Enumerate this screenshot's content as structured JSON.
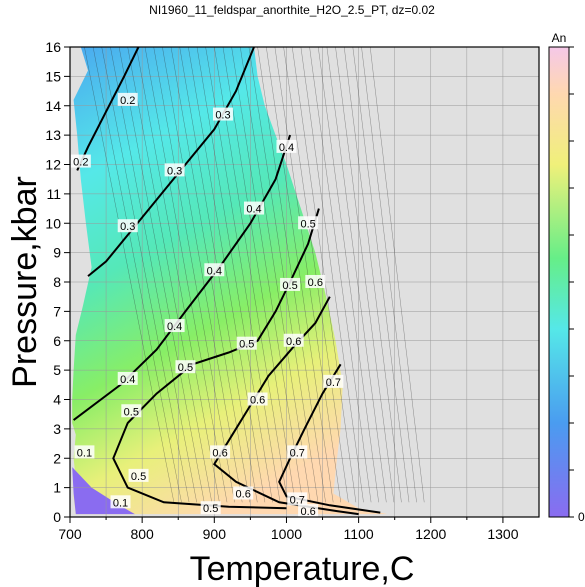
{
  "chart_data": {
    "type": "contour",
    "title": "NI1960_11_feldspar_anorthite_H2O_2.5_PT, dz=0.02",
    "xlabel": "Temperature,C",
    "ylabel": "Pressure,kbar",
    "xlim": [
      700,
      1350
    ],
    "ylim": [
      0,
      16
    ],
    "x_ticks": [
      700,
      800,
      900,
      1000,
      1100,
      1200,
      1300
    ],
    "y_ticks": [
      0,
      1,
      2,
      3,
      4,
      5,
      6,
      7,
      8,
      9,
      10,
      11,
      12,
      13,
      14,
      15,
      16
    ],
    "grid": true,
    "background_color": "#e0e0e0",
    "colorbar": {
      "label": "An",
      "min_label": "0",
      "min": 0,
      "max": 1,
      "placement": "right"
    },
    "contour_interval": 0.02,
    "major_contours": [
      0.2,
      0.3,
      0.4,
      0.5,
      0.6,
      0.7
    ],
    "domain_boundary": [
      [
        715,
        16
      ],
      [
        725,
        15.2
      ],
      [
        705,
        14.2
      ],
      [
        710,
        13
      ],
      [
        715,
        11.5
      ],
      [
        722,
        10
      ],
      [
        730,
        8.5
      ],
      [
        718,
        7.2
      ],
      [
        708,
        6.2
      ],
      [
        705,
        5
      ],
      [
        703,
        4
      ],
      [
        703,
        3.2
      ],
      [
        708,
        2.8
      ],
      [
        705,
        2
      ],
      [
        708,
        1.3
      ],
      [
        705,
        0.7
      ],
      [
        708,
        0.1
      ],
      [
        800,
        0.1
      ],
      [
        900,
        0.1
      ],
      [
        1000,
        0.1
      ],
      [
        1140,
        0.1
      ],
      [
        1100,
        0.3
      ],
      [
        1065,
        0.8
      ],
      [
        1070,
        2
      ],
      [
        1075,
        3
      ],
      [
        1078,
        4.5
      ],
      [
        1068,
        6
      ],
      [
        1055,
        7.5
      ],
      [
        1040,
        9
      ],
      [
        1020,
        10.5
      ],
      [
        1000,
        12
      ],
      [
        985,
        13
      ],
      [
        970,
        14
      ],
      [
        960,
        15
      ],
      [
        955,
        16
      ]
    ],
    "contour_labels": [
      {
        "text": "0.2",
        "x": 780,
        "y": 14.2
      },
      {
        "text": "0.2",
        "x": 715,
        "y": 12.1
      },
      {
        "text": "0.3",
        "x": 912,
        "y": 13.7
      },
      {
        "text": "0.3",
        "x": 845,
        "y": 11.8
      },
      {
        "text": "0.3",
        "x": 780,
        "y": 9.9
      },
      {
        "text": "0.4",
        "x": 1000,
        "y": 12.6
      },
      {
        "text": "0.4",
        "x": 955,
        "y": 10.5
      },
      {
        "text": "0.4",
        "x": 900,
        "y": 8.4
      },
      {
        "text": "0.4",
        "x": 845,
        "y": 6.5
      },
      {
        "text": "0.4",
        "x": 780,
        "y": 4.7
      },
      {
        "text": "0.5",
        "x": 1030,
        "y": 10.0
      },
      {
        "text": "0.5",
        "x": 1005,
        "y": 7.9
      },
      {
        "text": "0.5",
        "x": 945,
        "y": 5.9
      },
      {
        "text": "0.5",
        "x": 860,
        "y": 5.1
      },
      {
        "text": "0.5",
        "x": 785,
        "y": 3.6
      },
      {
        "text": "0.5",
        "x": 795,
        "y": 1.4
      },
      {
        "text": "0.5",
        "x": 895,
        "y": 0.3
      },
      {
        "text": "0.6",
        "x": 1040,
        "y": 8.0
      },
      {
        "text": "0.6",
        "x": 1010,
        "y": 6.0
      },
      {
        "text": "0.6",
        "x": 960,
        "y": 4.0
      },
      {
        "text": "0.6",
        "x": 908,
        "y": 2.2
      },
      {
        "text": "0.6",
        "x": 940,
        "y": 0.8
      },
      {
        "text": "0.6",
        "x": 1030,
        "y": 0.2
      },
      {
        "text": "0.7",
        "x": 1065,
        "y": 4.6
      },
      {
        "text": "0.7",
        "x": 1015,
        "y": 2.2
      },
      {
        "text": "0.7",
        "x": 1015,
        "y": 0.6
      },
      {
        "text": "0.1",
        "x": 720,
        "y": 2.2
      },
      {
        "text": "0.1",
        "x": 770,
        "y": 0.5
      }
    ]
  }
}
